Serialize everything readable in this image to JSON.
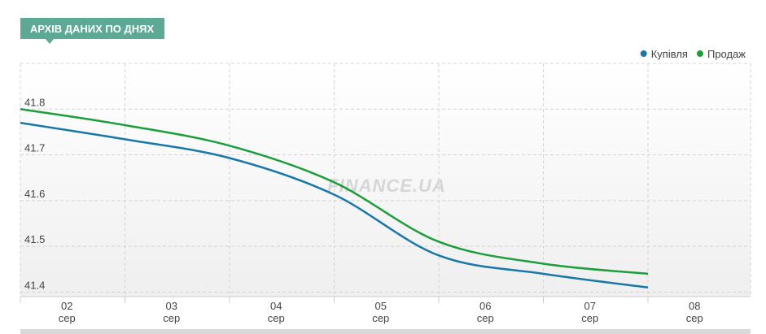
{
  "chart_data": {
    "type": "line",
    "title": "АРХІВ ДАНИХ ПО ДНЯХ",
    "watermark": "FINANCE.UA",
    "categories": [
      "02",
      "03",
      "04",
      "05",
      "06",
      "07",
      "08"
    ],
    "category_sublabel": "сер",
    "series": [
      {
        "name": "Купівля",
        "color": "#1a78a8",
        "values": [
          41.77,
          41.734,
          41.693,
          41.613,
          41.48,
          41.44,
          41.41
        ]
      },
      {
        "name": "Продаж",
        "color": "#1d9e3c",
        "values": [
          41.8,
          41.765,
          41.72,
          41.64,
          41.51,
          41.462,
          41.44
        ]
      }
    ],
    "ylim": [
      41.39,
      41.9
    ],
    "yticks": [
      41.4,
      41.5,
      41.6,
      41.7,
      41.8
    ],
    "grid": true,
    "legend": "top-right"
  }
}
